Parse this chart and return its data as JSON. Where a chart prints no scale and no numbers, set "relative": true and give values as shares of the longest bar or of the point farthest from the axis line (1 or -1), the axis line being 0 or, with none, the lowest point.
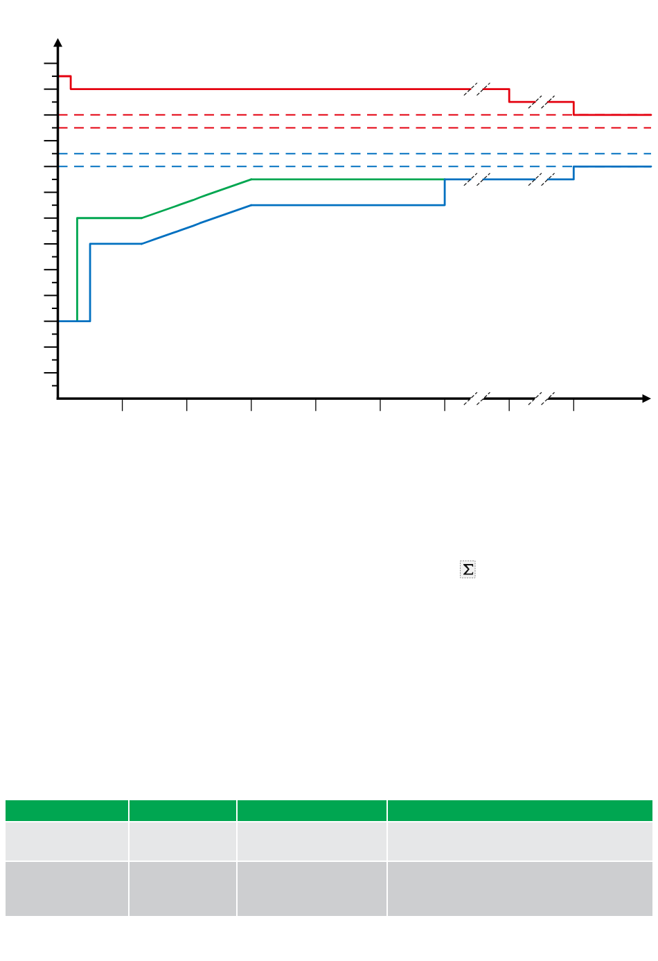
{
  "chart_data": {
    "type": "step",
    "relative": true,
    "categories": [
      null,
      null,
      null,
      null,
      null,
      null,
      null,
      null,
      null,
      null,
      null,
      null,
      null,
      null,
      null,
      null,
      null,
      null,
      null,
      null,
      null,
      null,
      null,
      null,
      null,
      null,
      null,
      null,
      null,
      null,
      null,
      null,
      null,
      null,
      null,
      null,
      null,
      null,
      null,
      null,
      null,
      null,
      null,
      null,
      null,
      null,
      null,
      null,
      null,
      null,
      null,
      null,
      null,
      null,
      null,
      null,
      null,
      null,
      null,
      null,
      null,
      null,
      null,
      null,
      null,
      null,
      null,
      null,
      null,
      null,
      null,
      null,
      null,
      null,
      null,
      null,
      null,
      null,
      null,
      null,
      null,
      null,
      null,
      null,
      null,
      null,
      null,
      null,
      null,
      null,
      null,
      null,
      null
    ],
    "series": [
      {
        "color": "#e4000f",
        "values": [
          1,
          1,
          1,
          0.96,
          0.96,
          0.96,
          0.96,
          0.96,
          0.96,
          0.96,
          0.96,
          0.96,
          0.96,
          0.96,
          0.96,
          0.96,
          0.96,
          0.96,
          0.96,
          0.96,
          0.96,
          0.96,
          0.96,
          0.96,
          0.96,
          0.96,
          0.96,
          0.96,
          0.96,
          0.96,
          0.96,
          0.96,
          0.96,
          0.96,
          0.96,
          0.96,
          0.96,
          0.96,
          0.96,
          0.96,
          0.96,
          0.96,
          0.96,
          0.96,
          0.96,
          0.96,
          0.96,
          0.96,
          0.96,
          0.96,
          0.96,
          0.96,
          0.96,
          0.96,
          0.96,
          0.96,
          0.96,
          0.96,
          0.96,
          0.96,
          0.96,
          0.96,
          0.96,
          0.96,
          0.96,
          null,
          0.96,
          0.96,
          0.96,
          0.96,
          0.96,
          0.92,
          0.92,
          0.92,
          0.92,
          null,
          0.92,
          0.92,
          0.92,
          0.92,
          0.92,
          0.88,
          0.88,
          0.88,
          0.88,
          0.88,
          0.88,
          0.88,
          0.88,
          0.88,
          0.88,
          0.88,
          0.88
        ]
      },
      {
        "color": "#00a650",
        "values": [
          null,
          null,
          null,
          0.24,
          0.56,
          0.56,
          0.56,
          0.56,
          0.56,
          0.56,
          0.56,
          0.56,
          0.56,
          0.56,
          null,
          null,
          null,
          null,
          null,
          null,
          null,
          null,
          null,
          null,
          null,
          null,
          null,
          null,
          null,
          null,
          0.68,
          0.68,
          0.68,
          0.68,
          0.68,
          0.68,
          0.68,
          0.68,
          0.68,
          0.68,
          0.68,
          0.68,
          0.68,
          0.68,
          0.68,
          0.68,
          0.68,
          0.68,
          0.68,
          0.68,
          0.68,
          0.68,
          0.68,
          0.68,
          0.68,
          0.68,
          0.68,
          0.68,
          0.68,
          0.68,
          0.68,
          null,
          null,
          null,
          null,
          null,
          null,
          null,
          null,
          null,
          null,
          null,
          null,
          null,
          null,
          null,
          null,
          null,
          null,
          null,
          null,
          null,
          null,
          null,
          null,
          null,
          null,
          null,
          null,
          null,
          null,
          null,
          null
        ]
      },
      {
        "type": "line",
        "color": "#00a650",
        "values": [
          null,
          null,
          null,
          null,
          null,
          null,
          null,
          null,
          null,
          null,
          null,
          null,
          null,
          0.56,
          0.567,
          0.574,
          0.581,
          0.588,
          0.595,
          0.602,
          0.609,
          0.616,
          0.624,
          0.631,
          0.638,
          0.645,
          0.652,
          0.659,
          0.666,
          0.673,
          0.68,
          null,
          null,
          null,
          null,
          null,
          null,
          null,
          null,
          null,
          null,
          null,
          null,
          null,
          null,
          null,
          null,
          null,
          null,
          null,
          null,
          null,
          null,
          null,
          null,
          null,
          null,
          null,
          null,
          null,
          null,
          null,
          null,
          null,
          null,
          null,
          null,
          null,
          null,
          null,
          null,
          null,
          null,
          null,
          null,
          null,
          null,
          null,
          null,
          null,
          null,
          null,
          null,
          null,
          null,
          null,
          null,
          null,
          null,
          null,
          null,
          null,
          null
        ]
      },
      {
        "color": "#0070c0",
        "values": [
          0.24,
          0.24,
          0.24,
          0.24,
          0.24,
          0.24,
          0.48,
          0.48,
          0.48,
          0.48,
          0.48,
          0.48,
          0.48,
          0.48,
          null,
          null,
          null,
          null,
          null,
          null,
          null,
          null,
          null,
          null,
          null,
          null,
          null,
          null,
          null,
          null,
          0.6,
          0.6,
          0.6,
          0.6,
          0.6,
          0.6,
          0.6,
          0.6,
          0.6,
          0.6,
          0.6,
          0.6,
          0.6,
          0.6,
          0.6,
          0.6,
          0.6,
          0.6,
          0.6,
          0.6,
          0.6,
          0.6,
          0.6,
          0.6,
          0.6,
          0.6,
          0.6,
          0.6,
          0.6,
          0.6,
          0.6,
          0.68,
          0.68,
          0.68,
          0.68,
          null,
          0.68,
          0.68,
          0.68,
          0.68,
          0.68,
          0.68,
          0.68,
          0.68,
          0.68,
          null,
          0.68,
          0.68,
          0.68,
          0.68,
          0.68,
          0.72,
          0.72,
          0.72,
          0.72,
          0.72,
          0.72,
          0.72,
          0.72,
          0.72,
          0.72,
          0.72,
          0.72
        ]
      },
      {
        "type": "line",
        "color": "#0070c0",
        "values": [
          null,
          null,
          null,
          null,
          null,
          null,
          null,
          null,
          null,
          null,
          null,
          null,
          null,
          0.48,
          0.487,
          0.494,
          0.501,
          0.508,
          0.515,
          0.522,
          0.529,
          0.536,
          0.544,
          0.551,
          0.558,
          0.565,
          0.572,
          0.579,
          0.586,
          0.593,
          0.6,
          null,
          null,
          null,
          null,
          null,
          null,
          null,
          null,
          null,
          null,
          null,
          null,
          null,
          null,
          null,
          null,
          null,
          null,
          null,
          null,
          null,
          null,
          null,
          null,
          null,
          null,
          null,
          null,
          null,
          null,
          null,
          null,
          null,
          null,
          null,
          null,
          null,
          null,
          null,
          null,
          null,
          null,
          null,
          null,
          null,
          null,
          null,
          null,
          null,
          null,
          null,
          null,
          null,
          null,
          null,
          null,
          null,
          null,
          null,
          null,
          null,
          null
        ]
      }
    ],
    "ref_lines": [
      {
        "axis": "y",
        "value": 0.88,
        "color": "#e4000f",
        "line_style": "dashed"
      },
      {
        "axis": "y",
        "value": 0.84,
        "color": "#e4000f",
        "line_style": "dashed"
      },
      {
        "axis": "y",
        "value": 0.76,
        "color": "#0070c0",
        "line_style": "dashed"
      },
      {
        "axis": "y",
        "value": 0.72,
        "color": "#0070c0",
        "line_style": "dashed"
      }
    ]
  }
}
